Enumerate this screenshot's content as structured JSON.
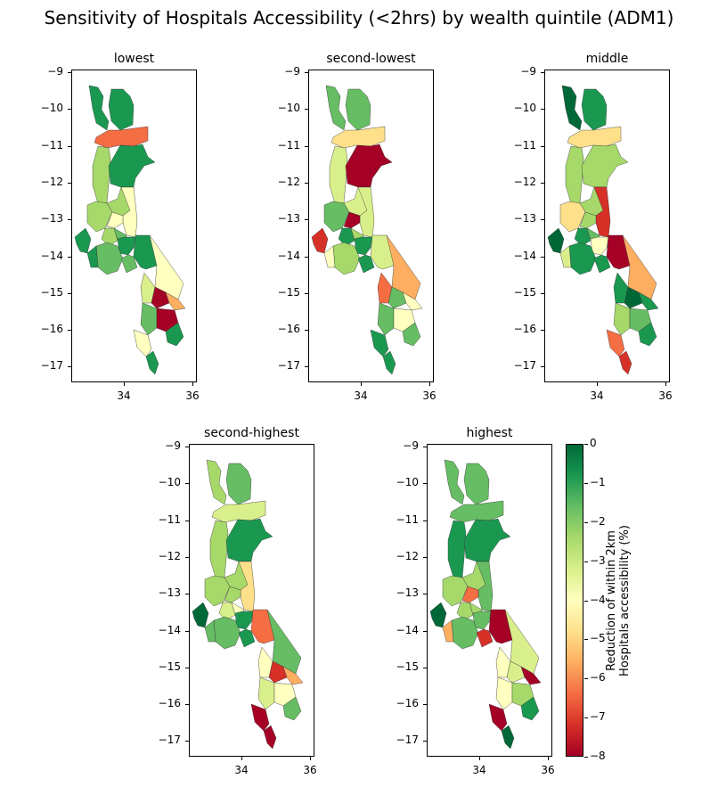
{
  "title": "Sensitivity of Hospitals Accessibility (<2hrs) by wealth quintile (ADM1)",
  "colors": {
    "c0": "#a50026",
    "c1": "#d73027",
    "c2": "#f46d43",
    "c3": "#fdae61",
    "c4": "#fee08b",
    "c5": "#ffffbf",
    "c6": "#d9ef8b",
    "c7": "#a6d96a",
    "c8": "#66bd63",
    "c9": "#1a9850",
    "c10": "#006837"
  },
  "panels": [
    {
      "name": "lowest",
      "colors": [
        "c9",
        "c9",
        "c2",
        "c7",
        "c9",
        "c7",
        "c5",
        "c7",
        "c5",
        "c7",
        "c8",
        "c9",
        "c9",
        "c9",
        "c8",
        "c9",
        "c8",
        "c5",
        "c6",
        "c0",
        "c3",
        "c8",
        "c0",
        "c9",
        "c5",
        "c9"
      ]
    },
    {
      "name": "second-lowest",
      "colors": [
        "c8",
        "c8",
        "c4",
        "c6",
        "c0",
        "c6",
        "c6",
        "c8",
        "c0",
        "c9",
        "c7",
        "c1",
        "c9",
        "c6",
        "c7",
        "c5",
        "c9",
        "c3",
        "c2",
        "c8",
        "c5",
        "c8",
        "c5",
        "c8",
        "c9",
        "c9"
      ]
    },
    {
      "name": "middle",
      "colors": [
        "c9",
        "c10",
        "c4",
        "c7",
        "c7",
        "c7",
        "c1",
        "c4",
        "c7",
        "c9",
        "c8",
        "c10",
        "c5",
        "c0",
        "c9",
        "c6",
        "c9",
        "c3",
        "c9",
        "c10",
        "c9",
        "c7",
        "c8",
        "c9",
        "c2",
        "c1"
      ]
    },
    {
      "name": "second-highest",
      "colors": [
        "c8",
        "c7",
        "c6",
        "c7",
        "c9",
        "c7",
        "c4",
        "c7",
        "c7",
        "c6",
        "c5",
        "c10",
        "c9",
        "c2",
        "c8",
        "c8",
        "c9",
        "c8",
        "c5",
        "c1",
        "c3",
        "c6",
        "c5",
        "c8",
        "c0",
        "c0"
      ]
    },
    {
      "name": "highest",
      "colors": [
        "c8",
        "c8",
        "c8",
        "c9",
        "c9",
        "c7",
        "c8",
        "c7",
        "c2",
        "c7",
        "c7",
        "c10",
        "c8",
        "c0",
        "c8",
        "c3",
        "c1",
        "c6",
        "c5",
        "c6",
        "c0",
        "c5",
        "c7",
        "c9",
        "c0",
        "c10"
      ]
    }
  ],
  "axes": {
    "yticks": [
      "−9",
      "−10",
      "−11",
      "−12",
      "−13",
      "−14",
      "−15",
      "−16",
      "−17"
    ],
    "xticks": [
      "34",
      "36"
    ]
  },
  "colorbar": {
    "label_line1": "Reduction of within 2km",
    "label_line2": "Hospitals accessibility (%)",
    "ticks": [
      "0",
      "−1",
      "−2",
      "−3",
      "−4",
      "−5",
      "−6",
      "−7",
      "−8"
    ],
    "range": [
      -8,
      0
    ]
  },
  "chart_data": {
    "type": "choropleth-map",
    "title": "Sensitivity of Hospitals Accessibility (<2hrs) by wealth quintile (ADM1)",
    "xlabel": "",
    "ylabel": "",
    "xlim": [
      32.6,
      36.1
    ],
    "ylim": [
      -17.5,
      -8.9
    ],
    "colorbar_range": [
      -8,
      0
    ],
    "colormap": "RdYlGn",
    "panels": [
      "lowest",
      "second-lowest",
      "middle",
      "second-highest",
      "highest"
    ]
  }
}
